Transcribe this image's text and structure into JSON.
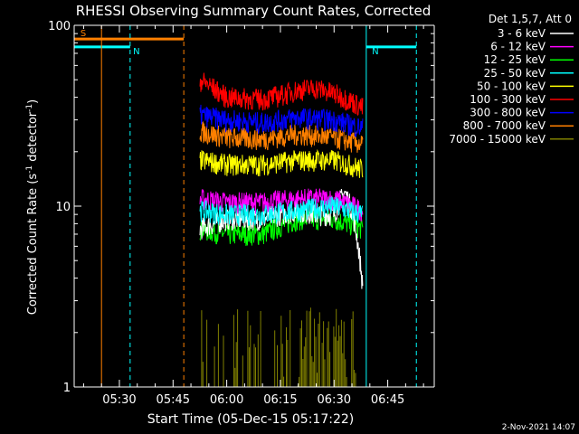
{
  "chart_data": {
    "type": "line",
    "title": "RHESSI Observing Summary Count Rates, Corrected",
    "xlabel": "Start Time (05-Dec-15 05:17:22)",
    "ylabel": "Corrected Count Rate (s",
    "ylabel_sup1": "-1",
    "ylabel_mid": " detector",
    "ylabel_sup2": "-1",
    "ylabel_end": ")",
    "y_scale": "log",
    "ylim": [
      1,
      100
    ],
    "y_ticks": [
      {
        "v": 1,
        "label": "1"
      },
      {
        "v": 10,
        "label": "10"
      },
      {
        "v": 100,
        "label": "100"
      }
    ],
    "xlim": [
      "05:17:22",
      "06:58:00"
    ],
    "x_ticks": [
      {
        "t": "05:30",
        "label": "05:30"
      },
      {
        "t": "05:45",
        "label": "05:45"
      },
      {
        "t": "06:00",
        "label": "06:00"
      },
      {
        "t": "06:15",
        "label": "06:15"
      },
      {
        "t": "06:30",
        "label": "06:30"
      },
      {
        "t": "06:45",
        "label": "06:45"
      }
    ],
    "legend_title": "Det 1,5,7, Att 0",
    "legend_position": "outside-right",
    "series": [
      {
        "name": "3 - 6 keV",
        "color": "#ffffff",
        "start": "05:52:30",
        "end": "06:38:00",
        "points": [
          [
            "05:52:30",
            7.5
          ],
          [
            "06:00",
            8.5
          ],
          [
            "06:10",
            8.5
          ],
          [
            "06:20",
            9.5
          ],
          [
            "06:25",
            9.0
          ],
          [
            "06:30",
            9.0
          ],
          [
            "06:33",
            12.0
          ],
          [
            "06:35",
            9.5
          ],
          [
            "06:38",
            3.5
          ]
        ]
      },
      {
        "name": "6 - 12 keV",
        "color": "#ff00ff",
        "start": "05:52:30",
        "end": "06:38:00",
        "points": [
          [
            "05:52:30",
            11.0
          ],
          [
            "06:00",
            10.5
          ],
          [
            "06:10",
            10.5
          ],
          [
            "06:20",
            11.0
          ],
          [
            "06:30",
            11.0
          ],
          [
            "06:38",
            9.5
          ]
        ]
      },
      {
        "name": "12 - 25 keV",
        "color": "#00ff00",
        "start": "05:52:30",
        "end": "06:38:00",
        "points": [
          [
            "05:52:30",
            7.5
          ],
          [
            "06:00",
            7.0
          ],
          [
            "06:10",
            7.0
          ],
          [
            "06:20",
            8.5
          ],
          [
            "06:30",
            8.5
          ],
          [
            "06:38",
            7.5
          ]
        ]
      },
      {
        "name": "25 - 50 keV",
        "color": "#00ffff",
        "start": "05:52:30",
        "end": "06:38:00",
        "points": [
          [
            "05:52:30",
            9.5
          ],
          [
            "06:00",
            9.0
          ],
          [
            "06:10",
            9.0
          ],
          [
            "06:20",
            9.5
          ],
          [
            "06:30",
            10.0
          ],
          [
            "06:38",
            9.0
          ]
        ]
      },
      {
        "name": "50 - 100 keV",
        "color": "#ffff00",
        "start": "05:52:30",
        "end": "06:38:00",
        "points": [
          [
            "05:52:30",
            18.0
          ],
          [
            "06:00",
            17.0
          ],
          [
            "06:10",
            17.0
          ],
          [
            "06:20",
            18.0
          ],
          [
            "06:30",
            18.0
          ],
          [
            "06:38",
            16.0
          ]
        ]
      },
      {
        "name": "100 - 300 keV",
        "color": "#ff0000",
        "start": "05:52:30",
        "end": "06:38:00",
        "points": [
          [
            "05:52:30",
            50.0
          ],
          [
            "06:00",
            40.0
          ],
          [
            "06:10",
            39.0
          ],
          [
            "06:15",
            41.0
          ],
          [
            "06:20",
            44.0
          ],
          [
            "06:25",
            45.0
          ],
          [
            "06:30",
            42.0
          ],
          [
            "06:35",
            38.0
          ],
          [
            "06:38",
            35.0
          ]
        ]
      },
      {
        "name": "300 - 800 keV",
        "color": "#0000ff",
        "start": "05:52:30",
        "end": "06:38:00",
        "points": [
          [
            "05:52:30",
            32.0
          ],
          [
            "06:00",
            30.0
          ],
          [
            "06:10",
            29.0
          ],
          [
            "06:20",
            31.0
          ],
          [
            "06:30",
            30.0
          ],
          [
            "06:38",
            27.0
          ]
        ]
      },
      {
        "name": "800 - 7000 keV",
        "color": "#ff8000",
        "start": "05:52:30",
        "end": "06:38:00",
        "points": [
          [
            "05:52:30",
            26.0
          ],
          [
            "06:00",
            24.0
          ],
          [
            "06:10",
            23.5
          ],
          [
            "06:20",
            25.0
          ],
          [
            "06:30",
            24.0
          ],
          [
            "06:38",
            22.0
          ]
        ]
      },
      {
        "name": "7000 - 15000 keV",
        "color": "#808000",
        "start": "05:53:00",
        "end": "06:36:00",
        "points": [
          [
            "05:53:00",
            1.0
          ],
          [
            "06:20",
            1.0
          ],
          [
            "06:36",
            1.0
          ]
        ],
        "spikes_to": 2.8
      }
    ],
    "annotations": [
      {
        "label": "S",
        "color": "#ff8000",
        "kind": "SAA",
        "start": "05:17:22",
        "end": "05:48:00",
        "y": 84
      },
      {
        "label": "N",
        "color": "#00ffff",
        "kind": "Night",
        "start": "05:17:22",
        "end": "05:33:00",
        "y": 76
      },
      {
        "label": "N",
        "color": "#00ffff",
        "kind": "Night",
        "start": "06:39:00",
        "end": "06:53:00",
        "y": 76
      }
    ],
    "markers": [
      {
        "time": "05:25:00",
        "color": "#ff8000",
        "style": "solid"
      },
      {
        "time": "05:33:00",
        "color": "#00ffff",
        "style": "dashed"
      },
      {
        "time": "05:48:00",
        "color": "#ff8000",
        "style": "dashed"
      },
      {
        "time": "06:39:00",
        "color": "#00ffff",
        "style": "solid"
      },
      {
        "time": "06:53:00",
        "color": "#00ffff",
        "style": "dashed"
      }
    ],
    "footer_timestamp": "2-Nov-2021 14:07"
  }
}
